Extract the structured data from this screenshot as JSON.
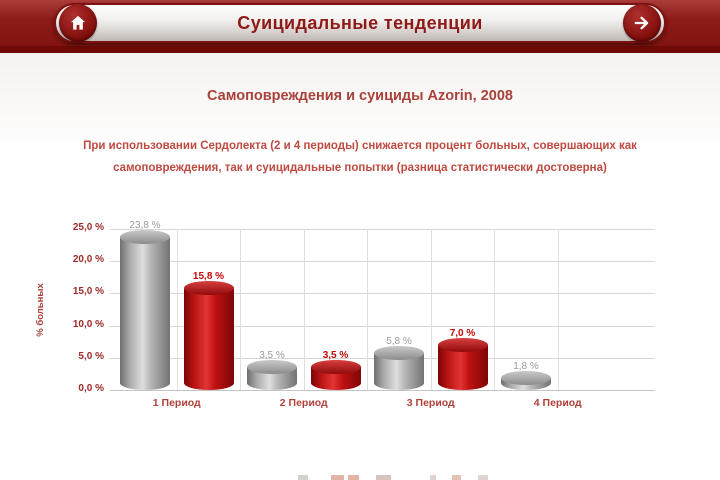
{
  "header": {
    "title": "Суицидальные тенденции",
    "home_icon": "home",
    "forward_icon": "arrow-right"
  },
  "slide": {
    "title": "Самоповреждения и суициды Azorin, 2008",
    "description_line1": "При использовании Сердолекта (2 и 4 периоды) снижается процент больных, совершающих как",
    "description_line2": "самоповреждения, так и суицидальные попытки (разница статистически достоверна)"
  },
  "chart_data": {
    "type": "bar",
    "categories": [
      "1 Период",
      "2 Период",
      "3 Период",
      "4 Период"
    ],
    "series": [
      {
        "name": "gray-series",
        "color": "#9C9C9C",
        "values": [
          23.8,
          3.5,
          5.8,
          1.8
        ],
        "labels": [
          "23,8 %",
          "3,5 %",
          "5,8 %",
          "1,8 %"
        ]
      },
      {
        "name": "red-series",
        "color": "#C11111",
        "values": [
          15.8,
          3.5,
          7.0,
          null
        ],
        "labels": [
          "15,8 %",
          "3,5 %",
          "7,0 %",
          null
        ]
      }
    ],
    "ylabel": "% больных",
    "yticks": [
      "25,0 %",
      "20,0 %",
      "15,0 %",
      "10,0 %",
      "5,0 %",
      "0,0 %"
    ],
    "ylim": [
      0,
      25
    ],
    "grid": true,
    "legend_position": "bottom-cutoff"
  },
  "colors": {
    "topbar_red": "#8E1B18",
    "dark_strip": "#6E0A08",
    "accent_text": "#A8423A",
    "bar_gray": "#9C9C9C",
    "bar_red": "#C11111"
  }
}
